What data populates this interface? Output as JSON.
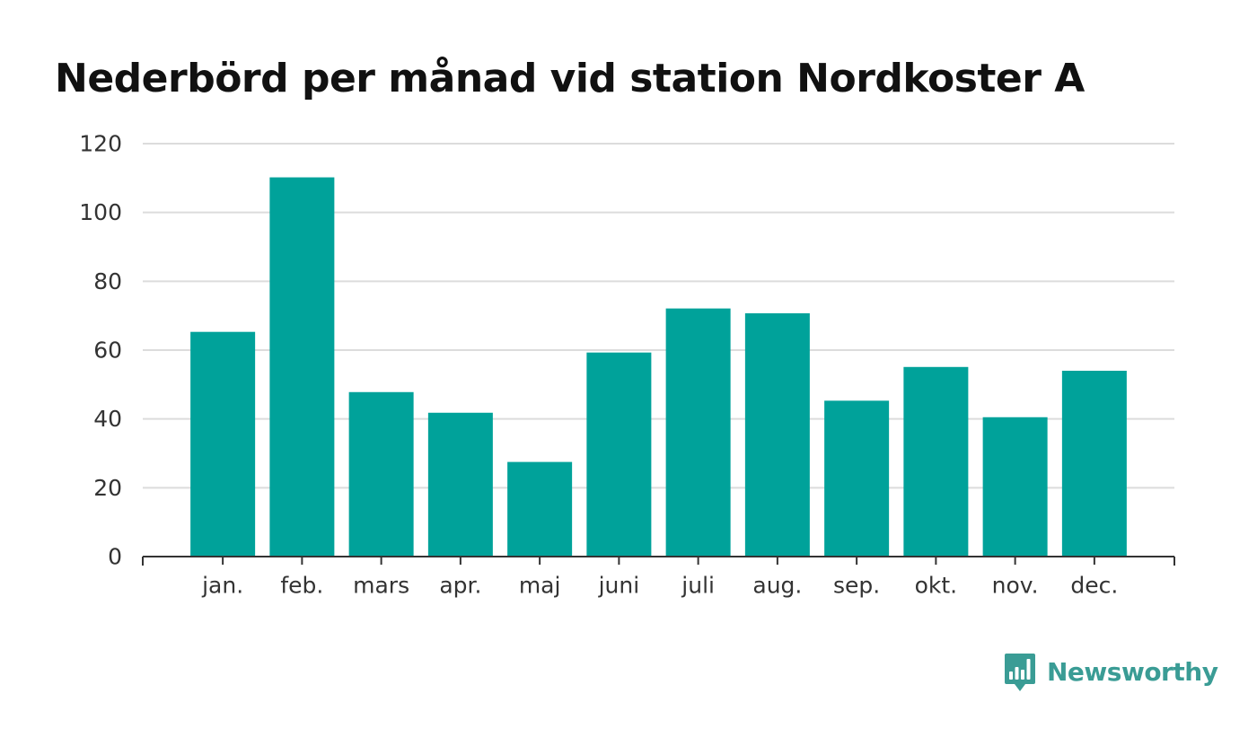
{
  "chart_data": {
    "type": "bar",
    "title": "Nederbörd per månad vid station Nordkoster A",
    "xlabel": "",
    "ylabel": "",
    "categories": [
      "jan.",
      "feb.",
      "mars",
      "apr.",
      "maj",
      "juni",
      "juli",
      "aug.",
      "sep.",
      "okt.",
      "nov.",
      "dec."
    ],
    "values": [
      65.3,
      110.2,
      47.8,
      41.8,
      27.5,
      59.3,
      72.1,
      70.7,
      45.3,
      55.1,
      40.5,
      54.0
    ],
    "ylim": [
      0,
      120
    ],
    "yticks": [
      0,
      20,
      40,
      60,
      80,
      100,
      120
    ],
    "grid": true,
    "legend": "none",
    "bar_color": "#00a29a",
    "grid_color": "#dcdcdc",
    "axis_color": "#333333"
  },
  "brand": {
    "name": "Newsworthy",
    "icon": "newsworthy-logo-icon",
    "color": "#3a9c95"
  }
}
